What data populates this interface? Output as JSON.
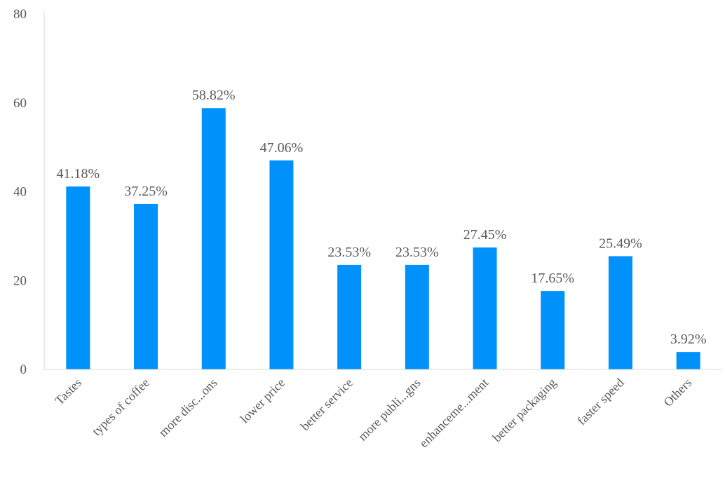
{
  "chart_data": {
    "type": "bar",
    "categories": [
      "Tastes",
      "types of coffee",
      "more disc...ons",
      "lower price",
      "better service",
      "more publi...gns",
      "enhanceme...ment",
      "better packaging",
      "faster speed",
      "Others"
    ],
    "values": [
      41.18,
      37.25,
      58.82,
      47.06,
      23.53,
      23.53,
      27.45,
      17.65,
      25.49,
      3.92
    ],
    "data_labels": [
      "41.18%",
      "37.25%",
      "58.82%",
      "47.06%",
      "23.53%",
      "23.53%",
      "27.45%",
      "17.65%",
      "25.49%",
      "3.92%"
    ],
    "y_ticks": [
      0,
      20,
      40,
      60,
      80
    ],
    "ylim": [
      0,
      80
    ],
    "title": "",
    "xlabel": "",
    "ylabel": "",
    "grid": false,
    "legend": "none",
    "bar_color": "#0092FA",
    "axis_color": "#D9D9D9"
  }
}
